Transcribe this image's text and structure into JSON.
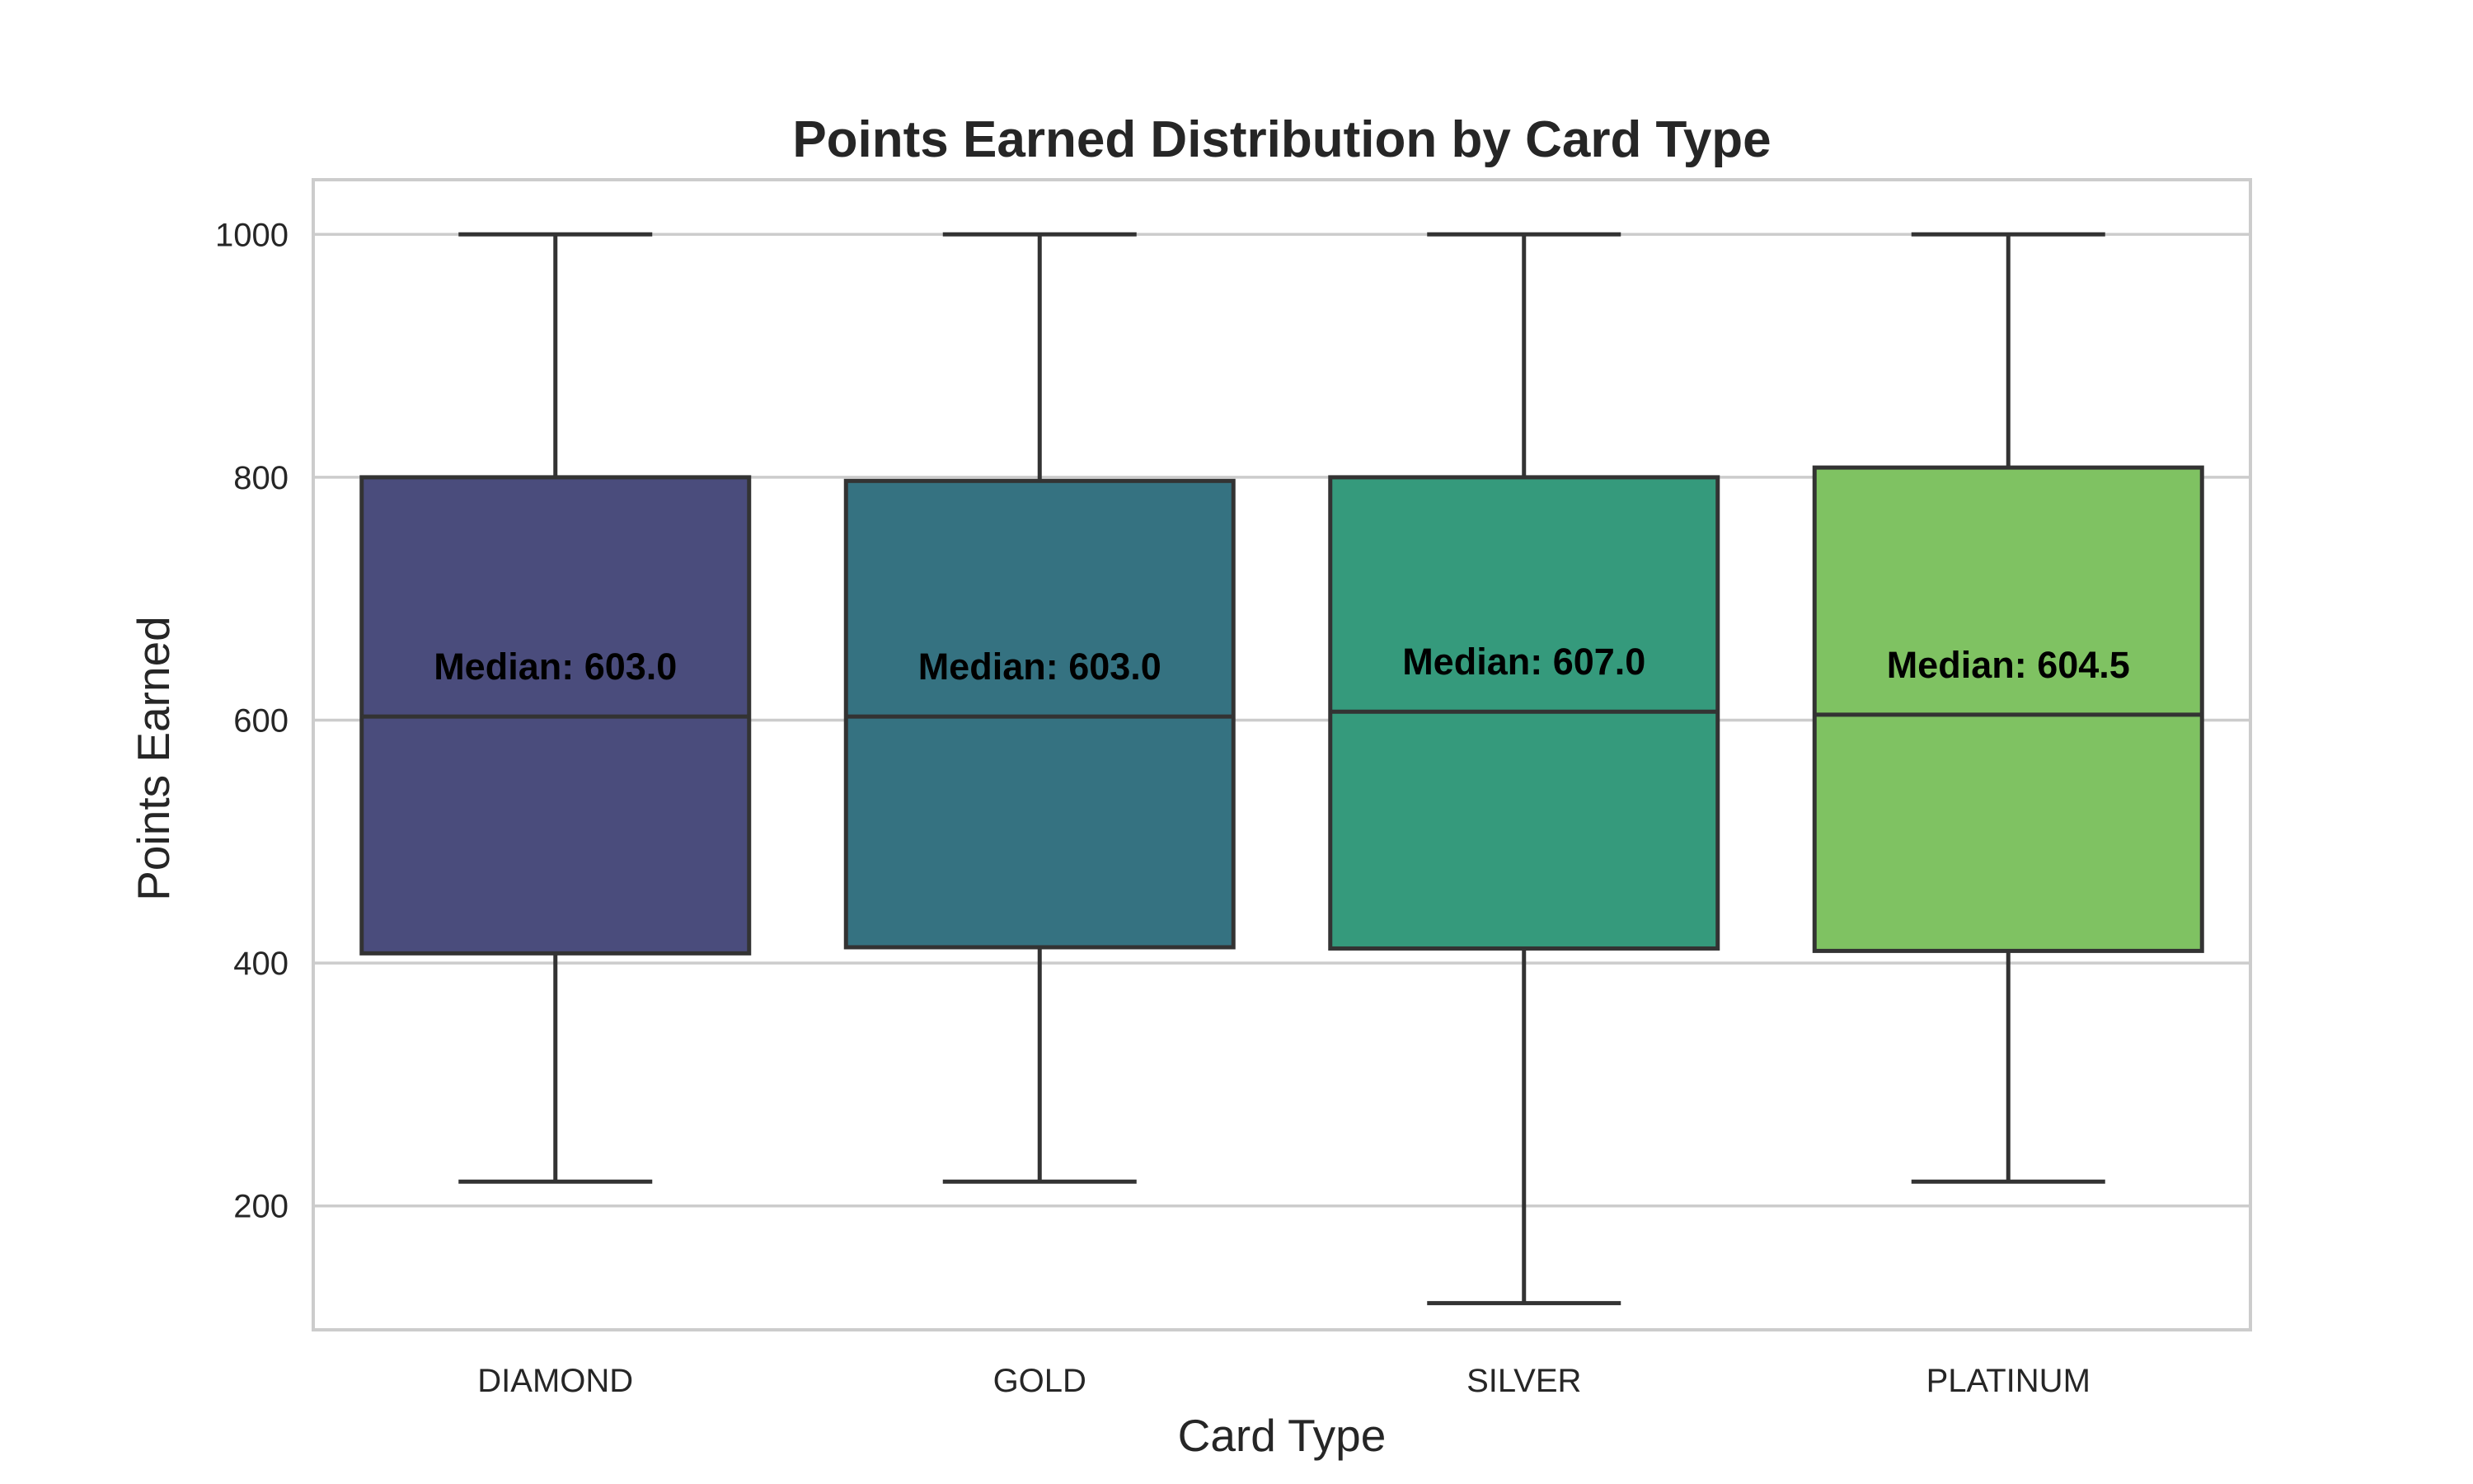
{
  "chart_data": {
    "type": "box",
    "title": "Points Earned Distribution by Card Type",
    "xlabel": "Card Type",
    "ylabel": "Points Earned",
    "ylim": [
      98,
      1045
    ],
    "yticks": [
      200,
      400,
      600,
      800,
      1000
    ],
    "grid": "horizontal",
    "categories": [
      "DIAMOND",
      "GOLD",
      "SILVER",
      "PLATINUM"
    ],
    "boxes": [
      {
        "category": "DIAMOND",
        "whisker_low": 220,
        "q1": 408,
        "median": 603.0,
        "q3": 800,
        "whisker_high": 1000,
        "label": "Median: 603.0",
        "color": "#4a4c7c"
      },
      {
        "category": "GOLD",
        "whisker_low": 220,
        "q1": 413,
        "median": 603.0,
        "q3": 797,
        "whisker_high": 1000,
        "label": "Median: 603.0",
        "color": "#357281"
      },
      {
        "category": "SILVER",
        "whisker_low": 120,
        "q1": 412,
        "median": 607.0,
        "q3": 800,
        "whisker_high": 1000,
        "label": "Median: 607.0",
        "color": "#359a7c"
      },
      {
        "category": "PLATINUM",
        "whisker_low": 220,
        "q1": 410,
        "median": 604.5,
        "q3": 808,
        "whisker_high": 1000,
        "label": "Median: 604.5",
        "color": "#7fc262"
      }
    ]
  }
}
